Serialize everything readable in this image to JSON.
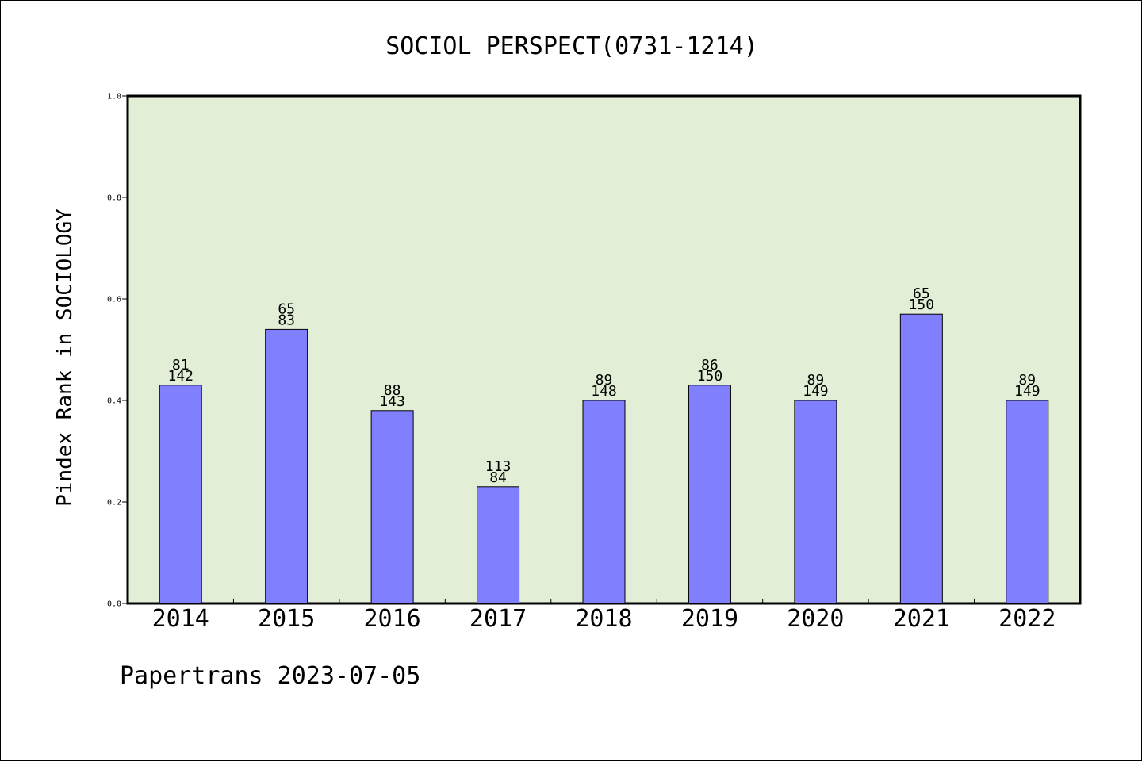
{
  "chart_data": {
    "type": "bar",
    "title": "SOCIOL PERSPECT(0731-1214)",
    "ylabel": "Pindex Rank in SOCIOLOGY",
    "xlabel": "",
    "ylim": [
      0.0,
      1.0
    ],
    "yticks": [
      "0.0",
      "0.2",
      "0.4",
      "0.6",
      "0.8",
      "1.0"
    ],
    "categories": [
      "2014",
      "2015",
      "2016",
      "2017",
      "2018",
      "2019",
      "2020",
      "2021",
      "2022"
    ],
    "values": [
      0.43,
      0.54,
      0.38,
      0.23,
      0.4,
      0.43,
      0.4,
      0.57,
      0.4
    ],
    "labels_top": [
      "81",
      "65",
      "88",
      "113",
      "89",
      "86",
      "89",
      "65",
      "89"
    ],
    "labels_bottom": [
      "142",
      "83",
      "143",
      "84",
      "148",
      "150",
      "149",
      "150",
      "149"
    ],
    "grid": false,
    "colors": {
      "plot_background": "#e2efd6",
      "bar_fill": "#8080ff",
      "bar_stroke": "#000000"
    }
  },
  "footer": {
    "text": "Papertrans 2023-07-05"
  }
}
